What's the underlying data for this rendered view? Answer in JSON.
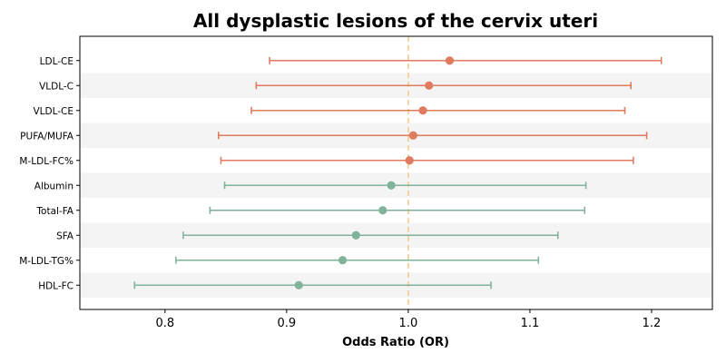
{
  "chart_data": {
    "type": "forest",
    "title": "All dysplastic lesions of the cervix uteri",
    "xlabel": "Odds Ratio (OR)",
    "ylabel": "",
    "xlim": [
      0.73,
      1.25
    ],
    "xticks": [
      0.8,
      0.9,
      1.0,
      1.1,
      1.2
    ],
    "xtick_labels": [
      "0.8",
      "0.9",
      "1.0",
      "1.1",
      "1.2"
    ],
    "reference_line": 1.0,
    "reference_line_style": "dashed",
    "grid": false,
    "alternating_row_shading": true,
    "colors": {
      "positive": "#E07B5F",
      "negative": "#81B29A",
      "reference": "#F2CC8F",
      "shading": "#F4F4F4"
    },
    "rows": [
      {
        "label": "LDL-CE",
        "or": 1.034,
        "lower": 0.886,
        "upper": 1.208,
        "group": "positive"
      },
      {
        "label": "VLDL-C",
        "or": 1.017,
        "lower": 0.875,
        "upper": 1.183,
        "group": "positive"
      },
      {
        "label": "VLDL-CE",
        "or": 1.012,
        "lower": 0.871,
        "upper": 1.178,
        "group": "positive"
      },
      {
        "label": "PUFA/MUFA",
        "or": 1.004,
        "lower": 0.844,
        "upper": 1.196,
        "group": "positive"
      },
      {
        "label": "M-LDL-FC%",
        "or": 1.001,
        "lower": 0.846,
        "upper": 1.185,
        "group": "positive"
      },
      {
        "label": "Albumin",
        "or": 0.986,
        "lower": 0.849,
        "upper": 1.146,
        "group": "negative"
      },
      {
        "label": "Total-FA",
        "or": 0.979,
        "lower": 0.837,
        "upper": 1.145,
        "group": "negative"
      },
      {
        "label": "SFA",
        "or": 0.957,
        "lower": 0.815,
        "upper": 1.123,
        "group": "negative"
      },
      {
        "label": "M-LDL-TG%",
        "or": 0.946,
        "lower": 0.809,
        "upper": 1.107,
        "group": "negative"
      },
      {
        "label": "HDL-FC",
        "or": 0.91,
        "lower": 0.775,
        "upper": 1.068,
        "group": "negative"
      }
    ]
  }
}
